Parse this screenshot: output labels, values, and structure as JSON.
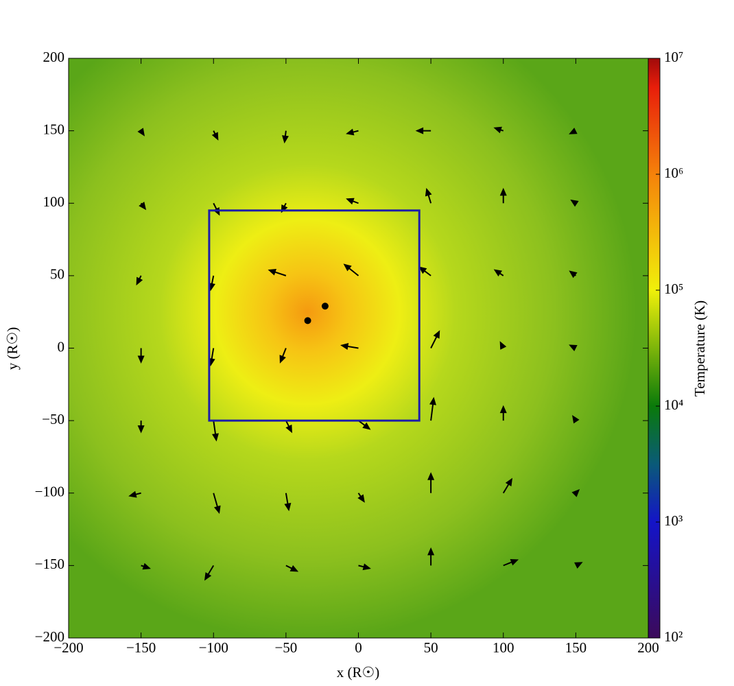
{
  "chart_data": {
    "type": "quiver",
    "x_label": "x  (R☉)",
    "y_label": "y  (R☉)",
    "xlim": [
      -200,
      200
    ],
    "ylim": [
      -200,
      200
    ],
    "xticks": [
      {
        "value": -200,
        "label": "−200"
      },
      {
        "value": -150,
        "label": "−150"
      },
      {
        "value": -100,
        "label": "−100"
      },
      {
        "value": -50,
        "label": "−50"
      },
      0,
      50,
      100,
      150,
      200
    ],
    "yticks": [
      {
        "value": -200,
        "label": "−200"
      },
      {
        "value": -150,
        "label": "−150"
      },
      {
        "value": -100,
        "label": "−100"
      },
      {
        "value": -50,
        "label": "−50"
      },
      0,
      50,
      100,
      150,
      200
    ],
    "colorbar": {
      "label": "Temperature  (K)",
      "log": true,
      "lim": [
        100,
        10000000
      ],
      "ticks": [
        {
          "value": 100,
          "label": "10²"
        },
        {
          "value": 1000,
          "label": "10³"
        },
        {
          "value": 10000,
          "label": "10⁴"
        },
        {
          "value": 100000,
          "label": "10⁵"
        },
        {
          "value": 1000000,
          "label": "10⁶"
        },
        {
          "value": 10000000,
          "label": "10⁷"
        }
      ]
    },
    "box": {
      "x": [
        -103,
        42
      ],
      "y": [
        -50,
        95
      ],
      "color": "#1c1caa"
    },
    "points": {
      "x": [
        -35,
        -23
      ],
      "y": [
        19,
        29
      ],
      "color": "#000000"
    },
    "quiver": {
      "color": "#000000",
      "x": [
        -150,
        -100,
        -50,
        0,
        50,
        100,
        150,
        -150,
        -100,
        -50,
        0,
        50,
        100,
        150,
        -150,
        -100,
        -50,
        0,
        50,
        100,
        150,
        -150,
        -100,
        -50,
        0,
        50,
        100,
        150,
        -150,
        -100,
        -50,
        0,
        50,
        100,
        150,
        -150,
        -100,
        -50,
        0,
        50,
        100,
        150,
        -150,
        -100,
        -50,
        0,
        50,
        100,
        150
      ],
      "y": [
        150,
        150,
        150,
        150,
        150,
        150,
        150,
        100,
        100,
        100,
        100,
        100,
        100,
        100,
        50,
        50,
        50,
        50,
        50,
        50,
        50,
        0,
        0,
        0,
        0,
        0,
        0,
        0,
        -50,
        -50,
        -50,
        -50,
        -50,
        -50,
        -50,
        -100,
        -100,
        -100,
        -100,
        -100,
        -100,
        -100,
        -150,
        -150,
        -150,
        -150,
        -150,
        -150,
        -150
      ],
      "u": [
        2,
        3,
        -1,
        -8,
        -10,
        -6,
        -4,
        3,
        4,
        -3,
        -8,
        -3,
        0,
        -3,
        -3,
        -2,
        -12,
        -10,
        -8,
        -6,
        -4,
        0,
        -2,
        -4,
        -12,
        6,
        -2,
        -4,
        0,
        2,
        4,
        8,
        2,
        0,
        -2,
        -8,
        4,
        2,
        4,
        0,
        6,
        2,
        6,
        -6,
        8,
        8,
        0,
        10,
        4
      ],
      "v": [
        -3,
        -6,
        -8,
        -2,
        0,
        2,
        -2,
        -4,
        -8,
        -6,
        3,
        10,
        10,
        2,
        -6,
        -10,
        4,
        8,
        6,
        4,
        3,
        -10,
        -12,
        -10,
        2,
        12,
        4,
        2,
        -8,
        -14,
        -8,
        -6,
        16,
        10,
        3,
        -2,
        -14,
        -12,
        -6,
        14,
        10,
        2,
        -2,
        -10,
        -4,
        -2,
        12,
        4,
        2
      ]
    }
  }
}
